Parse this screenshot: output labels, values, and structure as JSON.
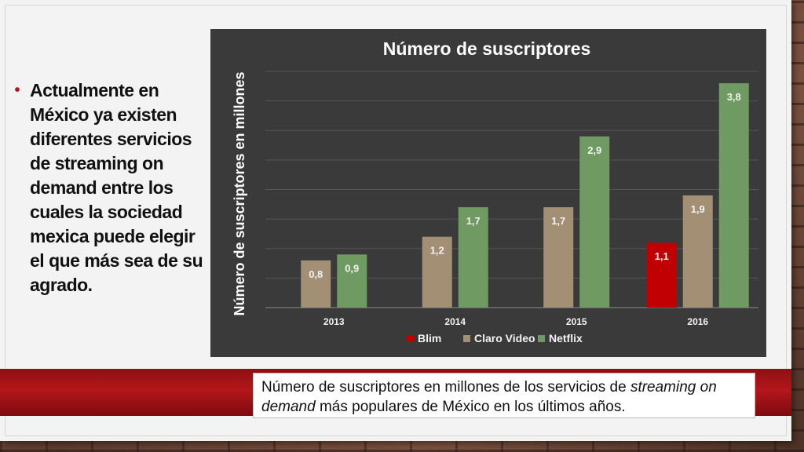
{
  "slide": {
    "bullet_text": "Actualmente en México ya existen diferentes servicios de streaming on demand entre los cuales la sociedad mexica puede elegir el que más sea de su agrado.",
    "caption_part1": "Número de suscriptores en millones de los servicios de ",
    "caption_em1": "streaming",
    "caption_em2": "on demand",
    "caption_part2": " más populares de México en los últimos años."
  },
  "colors": {
    "chart_bg": "#3a3a3a",
    "blim": "#c00000",
    "claro_video": "#a38f74",
    "netflix": "#6f9a62",
    "accent_red": "#b3161b"
  },
  "chart_data": {
    "type": "bar",
    "title": "Número de suscriptores",
    "xlabel": "",
    "ylabel": "Número de suscriptores en millones",
    "categories": [
      "2013",
      "2014",
      "2015",
      "2016"
    ],
    "series": [
      {
        "name": "Blim",
        "values": [
          null,
          null,
          null,
          1.1
        ],
        "labels": [
          "",
          "",
          "",
          "1,1"
        ]
      },
      {
        "name": "Claro Video",
        "values": [
          0.8,
          1.2,
          1.7,
          1.9
        ],
        "labels": [
          "0,8",
          "1,2",
          "1,7",
          "1,9"
        ]
      },
      {
        "name": "Netflix",
        "values": [
          0.9,
          1.7,
          2.9,
          3.8
        ],
        "labels": [
          "0,9",
          "1,7",
          "2,9",
          "3,8"
        ]
      }
    ],
    "ylim": [
      0,
      4
    ],
    "grid": true,
    "legend": "bottom"
  }
}
